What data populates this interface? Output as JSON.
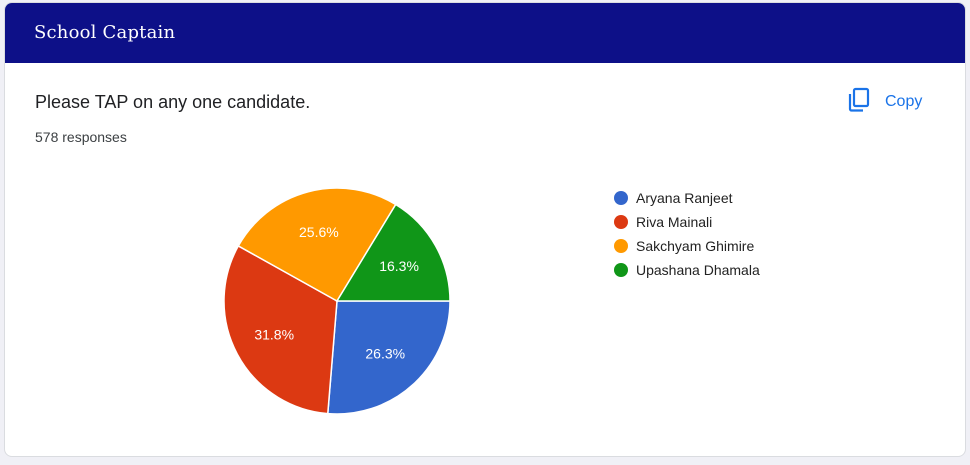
{
  "header": {
    "title": "School Captain"
  },
  "question": {
    "text": "Please TAP on any one candidate.",
    "responses": "578 responses"
  },
  "copy": {
    "label": "Copy",
    "icon": "copy-icon"
  },
  "colors": {
    "header": "#0d1088",
    "accent": "#1a73e8"
  },
  "chart_data": {
    "type": "pie",
    "categories": [
      "Aryana Ranjeet",
      "Riva Mainali",
      "Sakchyam Ghimire",
      "Upashana Dhamala"
    ],
    "values": [
      26.3,
      31.8,
      25.6,
      16.3
    ],
    "labels": [
      "26.3%",
      "31.8%",
      "25.6%",
      "16.3%"
    ],
    "colors": [
      "#3366cc",
      "#dc3912",
      "#ff9900",
      "#109618"
    ],
    "legend": "right"
  }
}
